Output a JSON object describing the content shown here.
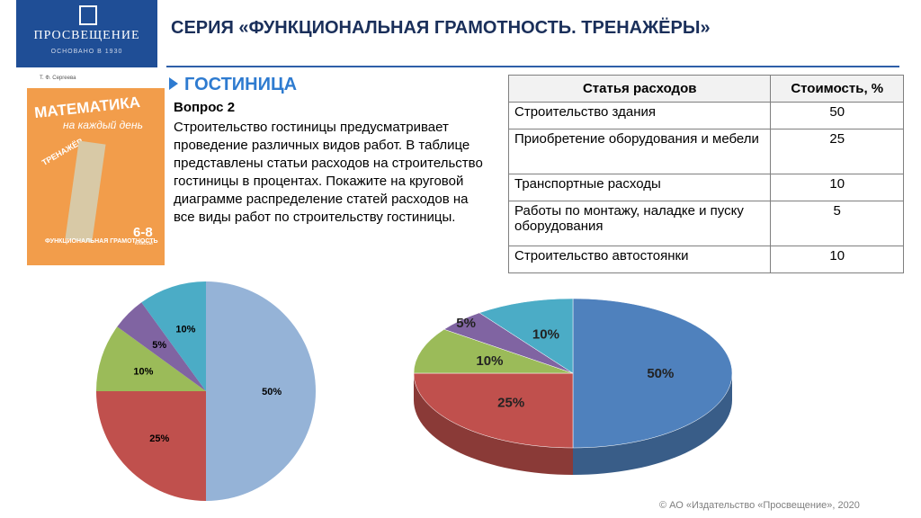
{
  "logo": {
    "name": "ПРОСВЕЩЕНИЕ",
    "tagline": "ОСНОВАНО В 1930"
  },
  "header": {
    "title": "СЕРИЯ «ФУНКЦИОНАЛЬНАЯ ГРАМОТНОСТЬ. ТРЕНАЖЁРЫ»"
  },
  "cover": {
    "author": "Т. Ф. Сергеева",
    "title": "МАТЕМАТИКА",
    "subtitle": "на каждый день",
    "series": "ТРЕНАЖЁР",
    "bottom": "ФУНКЦИОНАЛЬНАЯ ГРАМОТНОСТЬ",
    "grades": "6-8",
    "grades_word": "классы"
  },
  "section": {
    "title": "ГОСТИНИЦА",
    "question": "Вопрос 2",
    "text": "Строительство гостиницы предусматривает проведение различных видов работ. В таблице представлены статьи расходов на строительство гостиницы в процентах. Покажите на круговой диаграмме распределение статей расходов на все виды работ по строительству гостиницы."
  },
  "table": {
    "columns": [
      "Статья расходов",
      "Стоимость, %"
    ],
    "rows": [
      [
        "Строительство здания",
        50
      ],
      [
        "Приобретение оборудования и мебели",
        25
      ],
      [
        "Транспортные расходы",
        10
      ],
      [
        "Работы по монтажу, наладке и пуску оборудования",
        5
      ],
      [
        "Строительство автостоянки",
        10
      ]
    ]
  },
  "chart_data": [
    {
      "type": "pie",
      "values": [
        50,
        25,
        10,
        5,
        10
      ],
      "value_labels": [
        "50%",
        "25%",
        "10%",
        "5%",
        "10%"
      ],
      "colors": [
        "#95b3d7",
        "#c0504d",
        "#9bbb59",
        "#8064a2",
        "#4bacc6"
      ]
    },
    {
      "type": "pie3d",
      "values": [
        50,
        25,
        10,
        5,
        10
      ],
      "value_labels": [
        "50%",
        "25%",
        "10%",
        "5%",
        "10%"
      ],
      "colors": [
        "#4f81bd",
        "#c0504d",
        "#9bbb59",
        "#8064a2",
        "#4bacc6"
      ]
    }
  ],
  "footer": "© АО «Издательство «Просвещение», 2020"
}
